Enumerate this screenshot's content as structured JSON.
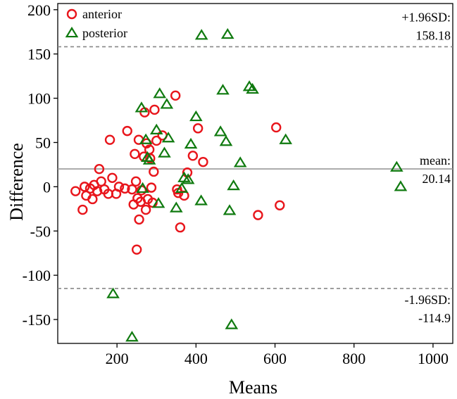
{
  "chart_data": {
    "type": "scatter",
    "title": "",
    "xlabel": "Means",
    "ylabel": "Difference",
    "xlim": [
      50,
      1050
    ],
    "ylim": [
      -177,
      207
    ],
    "xticks": [
      200,
      400,
      600,
      800,
      1000
    ],
    "yticks": [
      200,
      150,
      100,
      50,
      0,
      -50,
      -100,
      -150
    ],
    "xtick_labels": [
      "200",
      "400",
      "600",
      "800",
      "1000"
    ],
    "ytick_labels": [
      "200",
      "150",
      "100",
      "50",
      "0",
      "-50",
      "-100",
      "-150"
    ],
    "grid": false,
    "legend_position": "top-left",
    "reference_lines": [
      {
        "name": "upper-loa",
        "value": 158.18,
        "style": "dashed",
        "color": "#888888",
        "label_top": "+1.96SD:",
        "label_bottom": "158.18"
      },
      {
        "name": "mean",
        "value": 20.14,
        "style": "solid",
        "color": "#999999",
        "label_top": "mean:",
        "label_bottom": "20.14"
      },
      {
        "name": "lower-loa",
        "value": -114.9,
        "style": "dashed",
        "color": "#888888",
        "label_top": "-1.96SD:",
        "label_bottom": "-114.9"
      }
    ],
    "series": [
      {
        "name": "anterior",
        "marker": "circle",
        "color": "#e8151b",
        "points": [
          [
            95,
            -5
          ],
          [
            113,
            -26
          ],
          [
            118,
            0
          ],
          [
            122,
            -10
          ],
          [
            132,
            -2
          ],
          [
            138,
            -14
          ],
          [
            142,
            2
          ],
          [
            150,
            -5
          ],
          [
            155,
            20
          ],
          [
            160,
            6
          ],
          [
            168,
            -3
          ],
          [
            178,
            -8
          ],
          [
            182,
            53
          ],
          [
            188,
            10
          ],
          [
            198,
            -8
          ],
          [
            205,
            0
          ],
          [
            220,
            -2
          ],
          [
            226,
            63
          ],
          [
            238,
            -3
          ],
          [
            242,
            -20
          ],
          [
            245,
            37
          ],
          [
            248,
            6
          ],
          [
            250,
            -71
          ],
          [
            252,
            -13
          ],
          [
            255,
            53
          ],
          [
            256,
            -37
          ],
          [
            260,
            -17
          ],
          [
            262,
            -4
          ],
          [
            268,
            34
          ],
          [
            270,
            84
          ],
          [
            273,
            -26
          ],
          [
            275,
            49
          ],
          [
            278,
            -14
          ],
          [
            282,
            42
          ],
          [
            284,
            32
          ],
          [
            287,
            -1
          ],
          [
            290,
            -18
          ],
          [
            293,
            17
          ],
          [
            295,
            87
          ],
          [
            300,
            52
          ],
          [
            315,
            58
          ],
          [
            348,
            103
          ],
          [
            352,
            -3
          ],
          [
            355,
            -7
          ],
          [
            360,
            -46
          ],
          [
            370,
            -10
          ],
          [
            378,
            16
          ],
          [
            392,
            35
          ],
          [
            405,
            66
          ],
          [
            418,
            28
          ],
          [
            557,
            -32
          ],
          [
            603,
            67
          ],
          [
            612,
            -21
          ]
        ]
      },
      {
        "name": "posterior",
        "marker": "triangle",
        "color": "#0f7a0f",
        "points": [
          [
            190,
            -121
          ],
          [
            238,
            -170
          ],
          [
            262,
            89
          ],
          [
            265,
            -2
          ],
          [
            273,
            53
          ],
          [
            277,
            33
          ],
          [
            282,
            30
          ],
          [
            300,
            64
          ],
          [
            305,
            -19
          ],
          [
            308,
            105
          ],
          [
            320,
            38
          ],
          [
            326,
            93
          ],
          [
            330,
            55
          ],
          [
            350,
            -24
          ],
          [
            364,
            -2
          ],
          [
            370,
            10
          ],
          [
            380,
            8
          ],
          [
            387,
            48
          ],
          [
            400,
            79
          ],
          [
            413,
            -16
          ],
          [
            414,
            171
          ],
          [
            462,
            62
          ],
          [
            468,
            109
          ],
          [
            476,
            51
          ],
          [
            480,
            172
          ],
          [
            485,
            -27
          ],
          [
            490,
            -156
          ],
          [
            495,
            1
          ],
          [
            512,
            27
          ],
          [
            535,
            113
          ],
          [
            543,
            110
          ],
          [
            627,
            53
          ],
          [
            908,
            22
          ],
          [
            918,
            0
          ]
        ]
      }
    ]
  }
}
